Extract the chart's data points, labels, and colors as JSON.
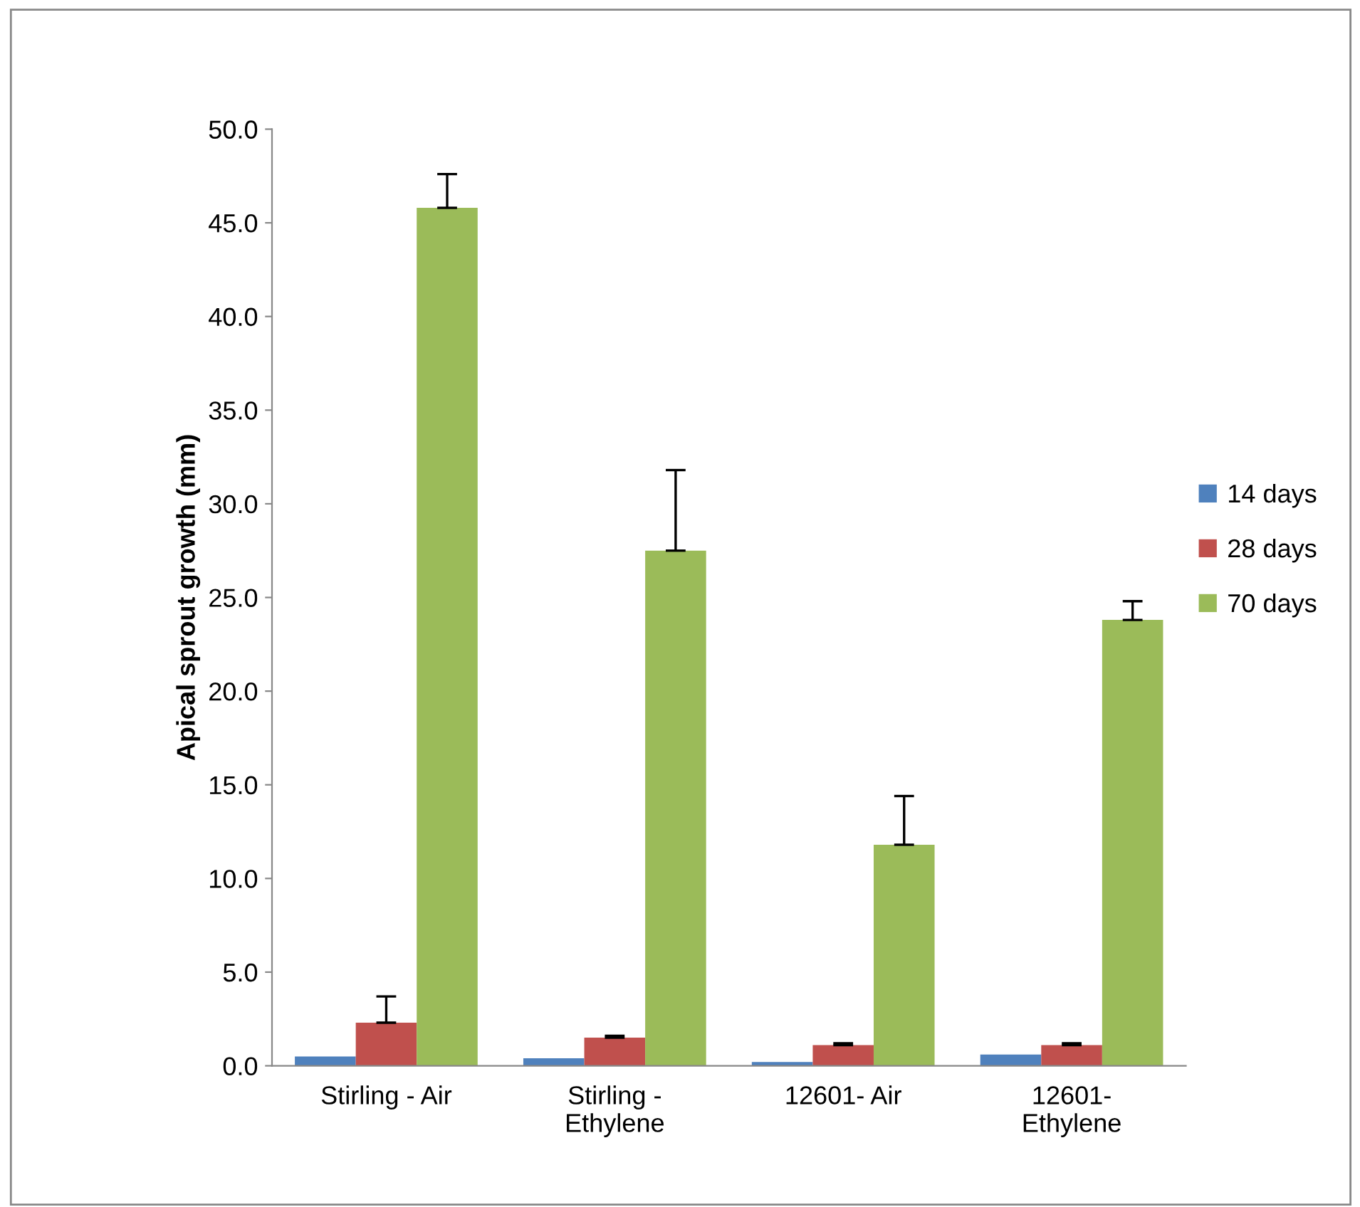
{
  "chart_data": {
    "type": "bar",
    "ylabel": "Apical sprout growth (mm)",
    "categories": [
      "Stirling - Air",
      "Stirling -\nEthylene",
      "12601- Air",
      "12601-\nEthylene"
    ],
    "series": [
      {
        "name": "14 days",
        "color": "#4f81bd",
        "values": [
          0.5,
          0.4,
          0.2,
          0.6
        ]
      },
      {
        "name": "28 days",
        "color": "#c0504d",
        "values": [
          2.3,
          1.5,
          1.1,
          1.1
        ],
        "errors": [
          [
            2.3,
            3.7
          ],
          [
            1.5,
            1.6
          ],
          [
            1.1,
            1.2
          ],
          [
            1.1,
            1.2
          ]
        ]
      },
      {
        "name": "70 days",
        "color": "#9bbb59",
        "values": [
          45.8,
          27.5,
          11.8,
          23.8
        ],
        "errors": [
          [
            45.8,
            47.6
          ],
          [
            27.5,
            31.8
          ],
          [
            11.8,
            14.4
          ],
          [
            23.8,
            24.8
          ]
        ]
      }
    ],
    "ylim": [
      0,
      50
    ],
    "yticks": [
      {
        "value": 0,
        "label": "0.0"
      },
      {
        "value": 5,
        "label": "5.0"
      },
      {
        "value": 10,
        "label": "10.0"
      },
      {
        "value": 15,
        "label": "15.0"
      },
      {
        "value": 20,
        "label": "20.0"
      },
      {
        "value": 25,
        "label": "25.0"
      },
      {
        "value": 30,
        "label": "30.0"
      },
      {
        "value": 35,
        "label": "35.0"
      },
      {
        "value": 40,
        "label": "40.0"
      },
      {
        "value": 45,
        "label": "45.0"
      },
      {
        "value": 50,
        "label": "50.0"
      }
    ],
    "grid": false,
    "legend": "right"
  }
}
